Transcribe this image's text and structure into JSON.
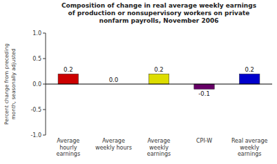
{
  "chart_data": {
    "type": "bar",
    "title": "Composition of change in real average weekly earnings\nof production or nonsupervisory workers on private\nnonfarm payrolls, November 2006",
    "ylabel": "Percent change from preceding\nmonth, seasonally adjusted",
    "categories": [
      "Average\nhourly\nearnings",
      "Average\nweekly hours",
      "Average\nweekly\nearnings",
      "CPI-W",
      "Real average\nweekly\nearnings"
    ],
    "values": [
      0.2,
      0.0,
      0.2,
      -0.1,
      0.2
    ],
    "value_labels": [
      "0.2",
      "0.0",
      "0.2",
      "-0.1",
      "0.2"
    ],
    "colors": [
      "#cc0000",
      "#d0d0d0",
      "#dddd00",
      "#660066",
      "#0000cc"
    ],
    "ylim": [
      -1.0,
      1.0
    ],
    "yticks": [
      {
        "value": -1.0,
        "label": "-1.0"
      },
      -0.5,
      {
        "value": 0.0,
        "label": "0.0"
      },
      0.5,
      {
        "value": 1.0,
        "label": "1.0"
      }
    ],
    "data_labels": true,
    "grid": false
  }
}
